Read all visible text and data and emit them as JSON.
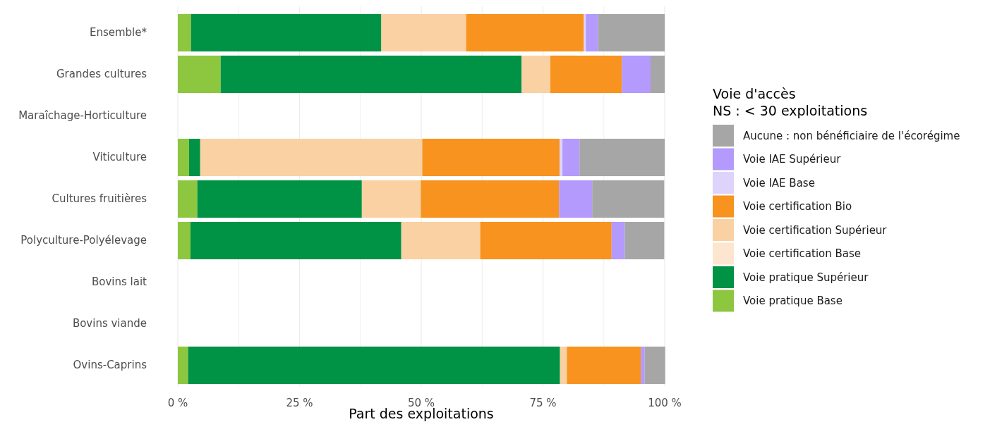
{
  "chart_data": {
    "type": "bar",
    "orientation": "horizontal",
    "stacked": true,
    "xlabel": "Part des exploitations",
    "legend_title": "Voie d'accès\nNS : < 30 exploitations",
    "legend": "right",
    "grid": "x",
    "categories": [
      "Ensemble*",
      "Grandes cultures",
      "Maraîchage-Horticulture",
      "Viticulture",
      "Cultures fruitières",
      "Polyculture-Polyélevage",
      "Bovins lait",
      "Bovins viande",
      "Ovins-Caprins"
    ],
    "xlim": [
      0,
      100
    ],
    "xticks": [
      {
        "value": 0,
        "label": "0 %"
      },
      {
        "value": 12.5,
        "label": null
      },
      {
        "value": 25,
        "label": "25 %"
      },
      {
        "value": 37.5,
        "label": null
      },
      {
        "value": 50,
        "label": "50 %"
      },
      {
        "value": 62.5,
        "label": null
      },
      {
        "value": 75,
        "label": "75 %"
      },
      {
        "value": 87.5,
        "label": null
      },
      {
        "value": 100,
        "label": "100 %"
      }
    ],
    "series": [
      {
        "name": "Voie pratique Base",
        "color": "#8dc63f",
        "values": [
          2.7,
          8.8,
          null,
          2.3,
          4.0,
          2.6,
          null,
          null,
          2.1
        ]
      },
      {
        "name": "Voie pratique Supérieur",
        "color": "#009245",
        "values": [
          39.1,
          61.8,
          null,
          2.3,
          33.8,
          43.3,
          null,
          null,
          76.4
        ]
      },
      {
        "name": "Voie certification Base",
        "color": "#fde6cf",
        "values": [
          0,
          0,
          null,
          0,
          0,
          0,
          null,
          null,
          0
        ]
      },
      {
        "name": "Voie certification Supérieur",
        "color": "#fad1a2",
        "values": [
          17.4,
          5.9,
          null,
          45.6,
          12.1,
          16.2,
          null,
          null,
          1.4
        ]
      },
      {
        "name": "Voie certification Bio",
        "color": "#f7931e",
        "values": [
          24.2,
          14.7,
          null,
          28.2,
          28.4,
          27.0,
          null,
          null,
          15.2
        ]
      },
      {
        "name": "Voie IAE Base",
        "color": "#ddd3fb",
        "values": [
          0.4,
          0,
          null,
          0.6,
          0,
          0,
          null,
          null,
          0
        ]
      },
      {
        "name": "Voie IAE Supérieur",
        "color": "#b39afc",
        "values": [
          2.5,
          5.9,
          null,
          3.5,
          6.8,
          2.7,
          null,
          null,
          0.8
        ]
      },
      {
        "name": "Aucune : non bénéficiaire de l'écorégime",
        "color": "#a6a6a6",
        "values": [
          13.7,
          2.9,
          null,
          17.5,
          14.8,
          8.1,
          null,
          null,
          4.2
        ]
      }
    ]
  }
}
